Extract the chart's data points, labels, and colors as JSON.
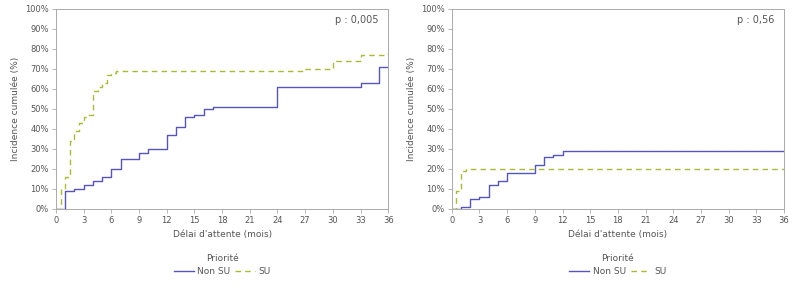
{
  "left_chart": {
    "p_value": "p : 0,005",
    "non_su_x": [
      0,
      1,
      1,
      2,
      2,
      3,
      3,
      4,
      4,
      5,
      5,
      6,
      6,
      7,
      7,
      8,
      8,
      9,
      9,
      10,
      10,
      11,
      11,
      12,
      12,
      13,
      13,
      14,
      14,
      15,
      15,
      16,
      16,
      17,
      17,
      18,
      18,
      19,
      19,
      20,
      20,
      21,
      21,
      24,
      24,
      27,
      27,
      30,
      30,
      33,
      33,
      35,
      35,
      36,
      36
    ],
    "non_su_y": [
      0,
      0,
      9,
      9,
      10,
      10,
      12,
      12,
      14,
      14,
      16,
      16,
      20,
      20,
      25,
      25,
      25,
      25,
      28,
      28,
      30,
      30,
      30,
      30,
      37,
      37,
      41,
      41,
      46,
      46,
      47,
      47,
      50,
      50,
      51,
      51,
      51,
      51,
      51,
      51,
      51,
      51,
      51,
      51,
      61,
      61,
      61,
      61,
      61,
      61,
      63,
      63,
      71,
      71,
      71
    ],
    "su_x": [
      0,
      0.5,
      0.5,
      1,
      1,
      1.5,
      1.5,
      2,
      2,
      2.5,
      2.5,
      3,
      3,
      3.5,
      3.5,
      4,
      4,
      4.5,
      4.5,
      5,
      5,
      5.5,
      5.5,
      6,
      6,
      6.5,
      6.5,
      7,
      7,
      8,
      8,
      27,
      27,
      30,
      30,
      33,
      33,
      36,
      36
    ],
    "su_y": [
      0,
      0,
      10,
      10,
      16,
      16,
      34,
      34,
      39,
      39,
      43,
      43,
      46,
      46,
      47,
      47,
      59,
      59,
      61,
      61,
      63,
      63,
      67,
      67,
      68,
      68,
      69,
      69,
      69,
      69,
      69,
      69,
      70,
      70,
      74,
      74,
      77,
      77,
      78
    ]
  },
  "right_chart": {
    "p_value": "p : 0,56",
    "non_su_x": [
      0,
      1,
      1,
      2,
      2,
      3,
      3,
      4,
      4,
      5,
      5,
      6,
      6,
      7,
      7,
      8,
      8,
      9,
      9,
      10,
      10,
      11,
      11,
      12,
      12,
      13,
      13,
      36,
      36
    ],
    "non_su_y": [
      0,
      0,
      1,
      1,
      5,
      5,
      6,
      6,
      12,
      12,
      14,
      14,
      18,
      18,
      18,
      18,
      18,
      18,
      22,
      22,
      26,
      26,
      27,
      27,
      29,
      29,
      29,
      29,
      29
    ],
    "su_x": [
      0,
      0.5,
      0.5,
      1,
      1,
      1.5,
      1.5,
      2,
      2,
      36,
      36
    ],
    "su_y": [
      0,
      0,
      9,
      9,
      19,
      19,
      20,
      20,
      20,
      20,
      20
    ]
  },
  "non_su_color": "#5555bb",
  "su_color": "#aabb33",
  "xlabel": "Délai d'attente (mois)",
  "ylabel": "Incidence cumulée (%)",
  "xticks": [
    0,
    3,
    6,
    9,
    12,
    15,
    18,
    21,
    24,
    27,
    30,
    33,
    36
  ],
  "yticks": [
    0,
    10,
    20,
    30,
    40,
    50,
    60,
    70,
    80,
    90,
    100
  ],
  "xlim": [
    0,
    36
  ],
  "ylim": [
    0,
    100
  ],
  "legend_label_priority": "Priorité",
  "legend_label_non_su": "Non SU",
  "legend_label_su": "SU",
  "background_color": "#ffffff",
  "spine_color": "#aaaaaa",
  "tick_color": "#555555",
  "label_fontsize": 6.5,
  "tick_fontsize": 6,
  "pval_fontsize": 7
}
